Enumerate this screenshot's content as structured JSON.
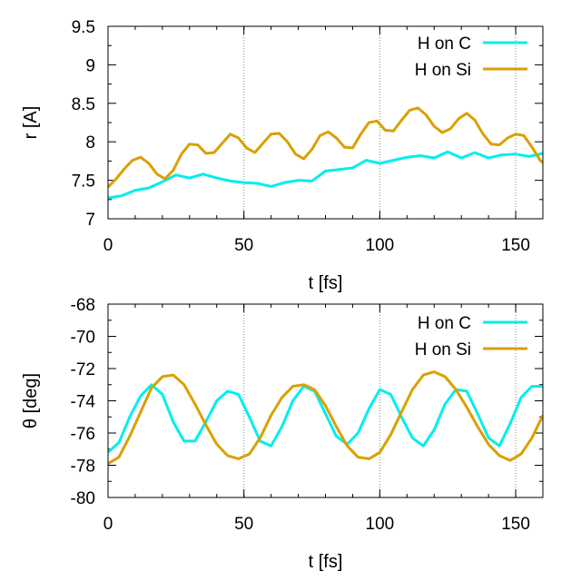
{
  "chart_data": [
    {
      "type": "line",
      "xlabel": "t  [fs]",
      "ylabel": "r  [A]",
      "xlim": [
        0,
        160
      ],
      "ylim": [
        7,
        9.5
      ],
      "xticks": [
        0,
        50,
        100,
        150
      ],
      "yticks": [
        7,
        7.5,
        8,
        8.5,
        9,
        9.5
      ],
      "ytick_labels": [
        "7",
        "7.5",
        "8",
        "8.5",
        "9",
        "9.5"
      ],
      "xgrid": [
        50,
        100,
        150
      ],
      "legend_position": "top-right",
      "series": [
        {
          "name": "H on C",
          "color": "#00eeee",
          "x": [
            0,
            5,
            10,
            15,
            20,
            25,
            30,
            35,
            40,
            45,
            50,
            55,
            60,
            65,
            70,
            75,
            80,
            85,
            90,
            95,
            100,
            105,
            110,
            115,
            120,
            125,
            130,
            135,
            140,
            145,
            150,
            155,
            160
          ],
          "y": [
            7.27,
            7.3,
            7.37,
            7.4,
            7.48,
            7.57,
            7.53,
            7.58,
            7.53,
            7.49,
            7.47,
            7.46,
            7.42,
            7.47,
            7.5,
            7.49,
            7.62,
            7.64,
            7.66,
            7.76,
            7.72,
            7.76,
            7.8,
            7.82,
            7.79,
            7.87,
            7.79,
            7.86,
            7.79,
            7.83,
            7.84,
            7.81,
            7.85
          ]
        },
        {
          "name": "H on Si",
          "color": "#daa000",
          "x": [
            0,
            3,
            6,
            9,
            12,
            15,
            18,
            21,
            24,
            27,
            30,
            33,
            36,
            39,
            42,
            45,
            48,
            51,
            54,
            57,
            60,
            63,
            66,
            69,
            72,
            75,
            78,
            81,
            84,
            87,
            90,
            93,
            96,
            99,
            102,
            105,
            108,
            111,
            114,
            117,
            120,
            123,
            126,
            129,
            132,
            135,
            138,
            141,
            144,
            147,
            150,
            153,
            156,
            159,
            160
          ],
          "y": [
            7.41,
            7.52,
            7.65,
            7.76,
            7.8,
            7.72,
            7.58,
            7.52,
            7.63,
            7.84,
            7.97,
            7.96,
            7.85,
            7.86,
            7.98,
            8.1,
            8.05,
            7.92,
            7.86,
            7.98,
            8.1,
            8.11,
            8.0,
            7.84,
            7.78,
            7.9,
            8.08,
            8.13,
            8.05,
            7.93,
            7.92,
            8.1,
            8.25,
            8.27,
            8.15,
            8.14,
            8.28,
            8.41,
            8.44,
            8.35,
            8.2,
            8.12,
            8.17,
            8.3,
            8.37,
            8.28,
            8.1,
            7.97,
            7.96,
            8.05,
            8.1,
            8.08,
            7.93,
            7.76,
            7.73
          ]
        }
      ]
    },
    {
      "type": "line",
      "xlabel": "t  [fs]",
      "ylabel": "θ  [deg]",
      "xlim": [
        0,
        160
      ],
      "ylim": [
        -80,
        -68
      ],
      "xticks": [
        0,
        50,
        100,
        150
      ],
      "yticks": [
        -80,
        -78,
        -76,
        -74,
        -72,
        -70,
        -68
      ],
      "ytick_labels": [
        "-80",
        "-78",
        "-76",
        "-74",
        "-72",
        "-70",
        "-68"
      ],
      "xgrid": [
        50,
        100,
        150
      ],
      "legend_position": "top-right",
      "series": [
        {
          "name": "H on C",
          "color": "#00eeee",
          "x": [
            0,
            4,
            8,
            12,
            16,
            20,
            24,
            28,
            32,
            36,
            40,
            44,
            48,
            52,
            56,
            60,
            64,
            68,
            72,
            76,
            80,
            84,
            88,
            92,
            96,
            100,
            104,
            108,
            112,
            116,
            120,
            124,
            128,
            132,
            136,
            140,
            144,
            148,
            152,
            156,
            160
          ],
          "y": [
            -77.2,
            -76.6,
            -75.0,
            -73.7,
            -73.0,
            -73.6,
            -75.3,
            -76.5,
            -76.5,
            -75.3,
            -74.0,
            -73.4,
            -73.6,
            -75.0,
            -76.5,
            -76.8,
            -75.6,
            -74.0,
            -73.1,
            -73.4,
            -74.8,
            -76.2,
            -76.7,
            -76.0,
            -74.5,
            -73.3,
            -73.6,
            -75.0,
            -76.3,
            -76.8,
            -75.8,
            -74.2,
            -73.3,
            -73.4,
            -74.8,
            -76.3,
            -76.8,
            -75.4,
            -73.8,
            -73.1,
            -73.1
          ]
        },
        {
          "name": "H on Si",
          "color": "#daa000",
          "x": [
            0,
            4,
            8,
            12,
            16,
            20,
            24,
            28,
            32,
            36,
            40,
            44,
            48,
            52,
            56,
            60,
            64,
            68,
            72,
            76,
            80,
            84,
            88,
            92,
            96,
            100,
            104,
            108,
            112,
            116,
            120,
            124,
            128,
            132,
            136,
            140,
            144,
            148,
            152,
            156,
            160
          ],
          "y": [
            -77.9,
            -77.5,
            -76.2,
            -74.7,
            -73.2,
            -72.5,
            -72.4,
            -73.0,
            -74.2,
            -75.5,
            -76.7,
            -77.4,
            -77.6,
            -77.3,
            -76.3,
            -74.9,
            -73.8,
            -73.1,
            -73.0,
            -73.3,
            -74.3,
            -75.6,
            -76.8,
            -77.5,
            -77.6,
            -77.2,
            -76.1,
            -74.7,
            -73.3,
            -72.4,
            -72.2,
            -72.5,
            -73.3,
            -74.4,
            -75.6,
            -76.7,
            -77.4,
            -77.7,
            -77.3,
            -76.3,
            -74.9
          ]
        }
      ]
    }
  ]
}
